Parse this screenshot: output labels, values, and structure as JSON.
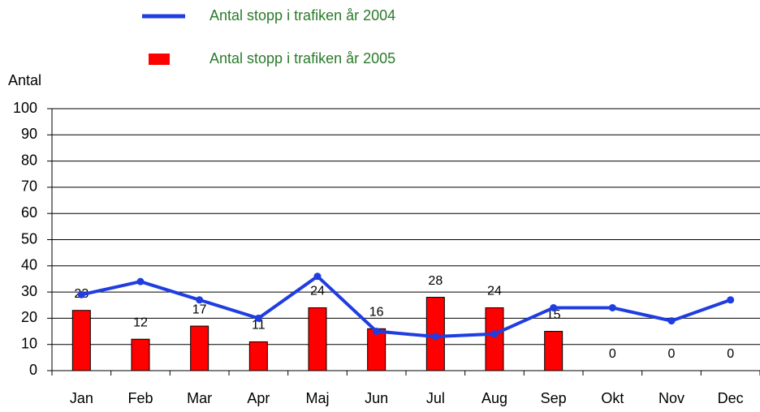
{
  "chart_data": {
    "type": "bar",
    "y_label": "Antal",
    "categories": [
      "Jan",
      "Feb",
      "Mar",
      "Apr",
      "Maj",
      "Jun",
      "Jul",
      "Aug",
      "Sep",
      "Okt",
      "Nov",
      "Dec"
    ],
    "series": [
      {
        "name": "Antal stopp i trafiken  år 2004",
        "type": "line",
        "color": "#1f3de0",
        "values": [
          29,
          34,
          27,
          20,
          36,
          15,
          13,
          14,
          24,
          24,
          19,
          27
        ]
      },
      {
        "name": "Antal stopp i trafiken  år 2005",
        "type": "bar",
        "color": "#ff0000",
        "values": [
          23,
          12,
          17,
          11,
          24,
          16,
          28,
          24,
          15,
          0,
          0,
          0
        ]
      }
    ],
    "ylim": [
      0,
      100
    ],
    "yticks": [
      0,
      10,
      20,
      30,
      40,
      50,
      60,
      70,
      80,
      90,
      100
    ],
    "grid": true
  }
}
